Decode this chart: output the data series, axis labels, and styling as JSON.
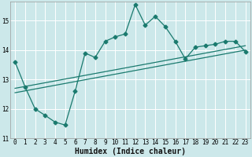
{
  "xlabel": "Humidex (Indice chaleur)",
  "ylabel": "",
  "bg_color": "#cce8ea",
  "grid_color": "#ffffff",
  "line_color": "#1a7a6e",
  "xlim": [
    -0.5,
    23.5
  ],
  "ylim": [
    11,
    15.65
  ],
  "yticks": [
    11,
    12,
    13,
    14,
    15
  ],
  "xticks": [
    0,
    1,
    2,
    3,
    4,
    5,
    6,
    7,
    8,
    9,
    10,
    11,
    12,
    13,
    14,
    15,
    16,
    17,
    18,
    19,
    20,
    21,
    22,
    23
  ],
  "line1_x": [
    0,
    1,
    2,
    3,
    4,
    5,
    6,
    7,
    8,
    9,
    10,
    11,
    12,
    13,
    14,
    15,
    16,
    17,
    18,
    19,
    20,
    21,
    22,
    23
  ],
  "line1_y": [
    13.6,
    12.75,
    12.0,
    11.78,
    11.55,
    11.45,
    12.6,
    13.9,
    13.75,
    14.3,
    14.45,
    14.55,
    15.55,
    14.85,
    15.15,
    14.8,
    14.3,
    13.7,
    14.1,
    14.15,
    14.2,
    14.3,
    14.3,
    13.95
  ],
  "line2_x": [
    0,
    23
  ],
  "line2_y": [
    12.55,
    14.0
  ],
  "line3_x": [
    0,
    23
  ],
  "line3_y": [
    12.7,
    14.15
  ],
  "marker_size": 2.5,
  "line_width": 0.9,
  "xlabel_fontsize": 7,
  "tick_fontsize": 5.5
}
